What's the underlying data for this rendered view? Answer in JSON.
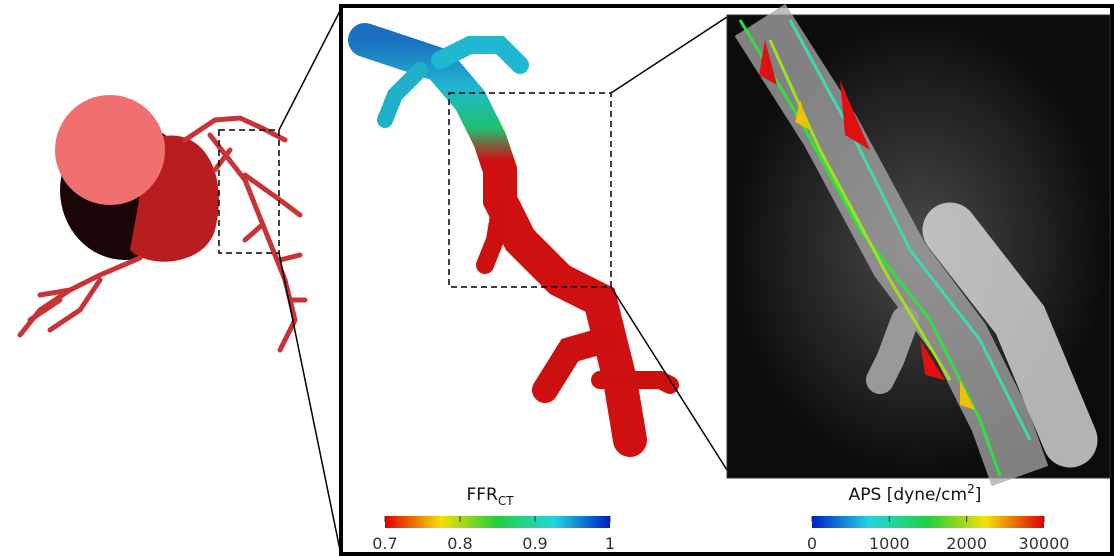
{
  "colorbars": {
    "ffr": {
      "title": "FFR",
      "title_sub": "CT",
      "ticks": [
        0.7,
        0.8,
        0.9,
        1
      ],
      "colors": [
        "#e00000",
        "#f5e000",
        "#20d040",
        "#20d8e0",
        "#0020c8"
      ]
    },
    "aps": {
      "title": "APS [dyne/cm",
      "title_sup": "2",
      "title_end": "]",
      "ticks": [
        0,
        1000,
        2000,
        30000
      ],
      "colors": [
        "#0020c8",
        "#20d8e0",
        "#20d040",
        "#f5e000",
        "#e00000"
      ]
    }
  }
}
